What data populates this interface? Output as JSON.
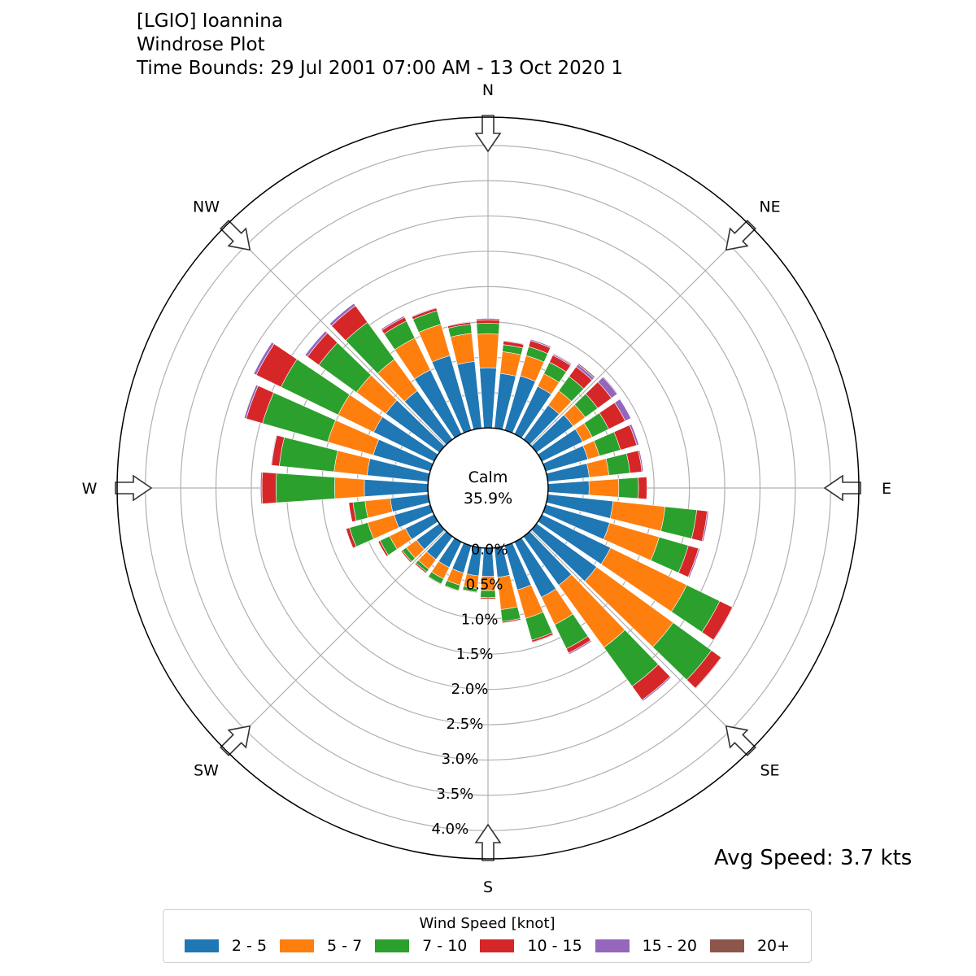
{
  "title_lines": [
    "[LGIO] Ioannina",
    "Windrose Plot",
    "Time Bounds: 29 Jul 2001 07:00 AM - 13 Oct 2020 1"
  ],
  "avg_speed_text": "Avg Speed: 3.7 kts",
  "chart_data": {
    "type": "windrose",
    "calm_label": "Calm",
    "calm_value": "35.9%",
    "radial_tick_labels": [
      "0.0%",
      "0.5%",
      "1.0%",
      "1.5%",
      "2.0%",
      "2.5%",
      "3.0%",
      "3.5%",
      "4.0%"
    ],
    "radial_ticks": [
      0,
      0.5,
      1.0,
      1.5,
      2.0,
      2.5,
      3.0,
      3.5,
      4.0
    ],
    "rmax": 4.4,
    "compass_labels": [
      "N",
      "NE",
      "E",
      "SE",
      "S",
      "SW",
      "W",
      "NW"
    ],
    "legend_title": "Wind Speed [knot]",
    "bins": [
      "2 - 5",
      "5 - 7",
      "7 - 10",
      "10 - 15",
      "15 - 20",
      "20+"
    ],
    "colors": [
      "#1f77b4",
      "#ff7f0e",
      "#2ca02c",
      "#d62728",
      "#9467bd",
      "#8c564b"
    ],
    "direction_step_deg": 10,
    "directions_deg": [
      0,
      10,
      20,
      30,
      40,
      50,
      60,
      70,
      80,
      90,
      100,
      110,
      120,
      130,
      140,
      150,
      160,
      170,
      180,
      190,
      200,
      210,
      220,
      230,
      240,
      250,
      260,
      270,
      280,
      290,
      300,
      310,
      320,
      330,
      340,
      350
    ],
    "cumulative": [
      [
        0.85,
        1.33,
        1.48,
        1.53,
        1.55,
        1.55
      ],
      [
        0.78,
        1.09,
        1.19,
        1.24,
        1.25,
        1.25
      ],
      [
        0.8,
        1.1,
        1.23,
        1.32,
        1.34,
        1.34
      ],
      [
        0.75,
        0.95,
        1.13,
        1.24,
        1.26,
        1.27
      ],
      [
        0.6,
        0.85,
        1.1,
        1.27,
        1.31,
        1.33
      ],
      [
        0.64,
        0.85,
        1.07,
        1.31,
        1.41,
        1.42
      ],
      [
        0.64,
        0.79,
        1.05,
        1.31,
        1.4,
        1.4
      ],
      [
        0.62,
        0.79,
        1.1,
        1.34,
        1.37,
        1.37
      ],
      [
        0.59,
        0.87,
        1.17,
        1.34,
        1.36,
        1.36
      ],
      [
        0.58,
        1.0,
        1.28,
        1.4,
        1.4,
        1.4
      ],
      [
        0.93,
        1.67,
        2.12,
        2.27,
        2.29,
        2.29
      ],
      [
        0.94,
        1.67,
        2.1,
        2.25,
        2.27,
        2.27
      ],
      [
        1.08,
        2.28,
        2.8,
        3.0,
        3.01,
        3.01
      ],
      [
        1.05,
        2.39,
        3.06,
        3.23,
        3.24,
        3.24
      ],
      [
        0.85,
        1.94,
        2.62,
        2.86,
        2.88,
        2.88
      ],
      [
        0.87,
        1.3,
        1.68,
        1.75,
        1.77,
        1.77
      ],
      [
        0.65,
        1.07,
        1.39,
        1.42,
        1.43,
        1.43
      ],
      [
        0.42,
        0.88,
        1.05,
        1.07,
        1.07,
        1.07
      ],
      [
        0.4,
        0.6,
        0.7,
        0.72,
        0.72,
        0.72
      ],
      [
        0.4,
        0.58,
        0.63,
        0.64,
        0.64,
        0.64
      ],
      [
        0.4,
        0.58,
        0.66,
        0.67,
        0.67,
        0.67
      ],
      [
        0.4,
        0.58,
        0.66,
        0.67,
        0.67,
        0.67
      ],
      [
        0.4,
        0.57,
        0.62,
        0.64,
        0.64,
        0.64
      ],
      [
        0.4,
        0.58,
        0.65,
        0.67,
        0.67,
        0.67
      ],
      [
        0.45,
        0.7,
        0.85,
        0.88,
        0.88,
        0.88
      ],
      [
        0.53,
        0.92,
        1.19,
        1.24,
        1.24,
        1.24
      ],
      [
        0.54,
        0.9,
        1.07,
        1.13,
        1.13,
        1.13
      ],
      [
        0.9,
        1.32,
        2.15,
        2.35,
        2.37,
        2.37
      ],
      [
        0.87,
        1.34,
        2.12,
        2.23,
        2.24,
        2.24
      ],
      [
        0.84,
        1.51,
        2.47,
        2.71,
        2.74,
        2.74
      ],
      [
        0.95,
        1.51,
        2.41,
        2.8,
        2.84,
        2.84
      ],
      [
        0.94,
        1.45,
        2.11,
        2.31,
        2.35,
        2.35
      ],
      [
        0.85,
        1.4,
        2.05,
        2.34,
        2.38,
        2.38
      ],
      [
        1.01,
        1.51,
        1.78,
        1.84,
        1.86,
        1.86
      ],
      [
        1.1,
        1.56,
        1.76,
        1.8,
        1.81,
        1.81
      ],
      [
        0.95,
        1.35,
        1.48,
        1.51,
        1.52,
        1.52
      ]
    ]
  }
}
